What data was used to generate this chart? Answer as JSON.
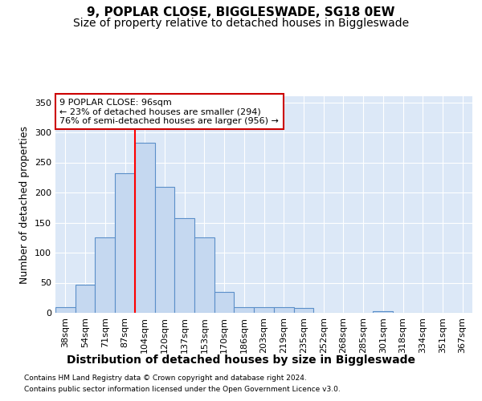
{
  "title1": "9, POPLAR CLOSE, BIGGLESWADE, SG18 0EW",
  "title2": "Size of property relative to detached houses in Biggleswade",
  "xlabel": "Distribution of detached houses by size in Biggleswade",
  "ylabel": "Number of detached properties",
  "categories": [
    "38sqm",
    "54sqm",
    "71sqm",
    "87sqm",
    "104sqm",
    "120sqm",
    "137sqm",
    "153sqm",
    "170sqm",
    "186sqm",
    "203sqm",
    "219sqm",
    "235sqm",
    "252sqm",
    "268sqm",
    "285sqm",
    "301sqm",
    "318sqm",
    "334sqm",
    "351sqm",
    "367sqm"
  ],
  "values": [
    10,
    47,
    125,
    232,
    283,
    210,
    157,
    125,
    35,
    10,
    10,
    10,
    8,
    0,
    0,
    0,
    3,
    0,
    0,
    0,
    0
  ],
  "bar_color": "#c5d8f0",
  "bar_edge_color": "#5b8fc9",
  "red_line_index": 3.5,
  "ylim": [
    0,
    360
  ],
  "yticks": [
    0,
    50,
    100,
    150,
    200,
    250,
    300,
    350
  ],
  "annotation_text": "9 POPLAR CLOSE: 96sqm\n← 23% of detached houses are smaller (294)\n76% of semi-detached houses are larger (956) →",
  "annotation_box_color": "#ffffff",
  "annotation_box_edge": "#cc0000",
  "footnote1": "Contains HM Land Registry data © Crown copyright and database right 2024.",
  "footnote2": "Contains public sector information licensed under the Open Government Licence v3.0.",
  "bg_color": "#dce8f7",
  "fig_bg_color": "#ffffff",
  "grid_color": "#ffffff",
  "title_fontsize": 11,
  "subtitle_fontsize": 10,
  "tick_fontsize": 8,
  "ylabel_fontsize": 9,
  "xlabel_fontsize": 10
}
